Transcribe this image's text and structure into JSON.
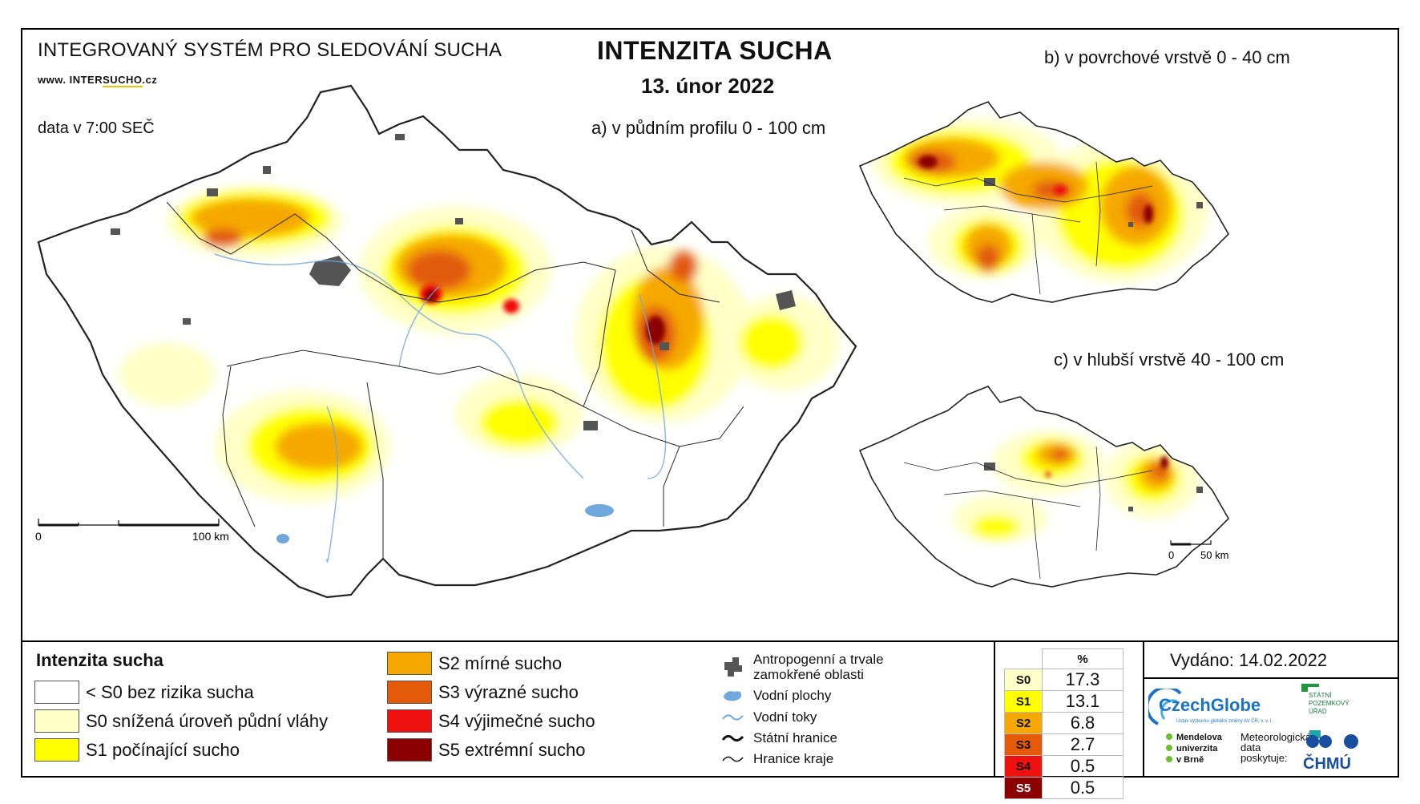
{
  "header": {
    "system_title": "INTEGROVANÝ SYSTÉM PRO SLEDOVÁNÍ SUCHA",
    "website_prefix": "www. INTER",
    "website_highlight": "SUCHO",
    "website_suffix": ".cz",
    "data_time": "data v 7:00 SEČ",
    "main_title": "INTENZITA SUCHA",
    "date": "13. únor 2022"
  },
  "maps": {
    "a_title": "a) v půdním profilu 0 - 100 cm",
    "b_title": "b) v povrchové vrstvě 0 - 40 cm",
    "c_title": "c) v hlubší vrstvě 40 - 100 cm",
    "scale_main": {
      "zero": "0",
      "end": "100 km"
    },
    "scale_small": {
      "zero": "0",
      "end": "50 km"
    }
  },
  "legend": {
    "title": "Intenzita sucha",
    "classes": [
      {
        "label": "< S0 bez rizika sucha",
        "color": "#ffffff"
      },
      {
        "label": "S0 snížená úroveň půdní vláhy",
        "color": "#ffffc8"
      },
      {
        "label": "S1 počínající sucho",
        "color": "#ffff00"
      },
      {
        "label": "S2 mírné sucho",
        "color": "#f5a800"
      },
      {
        "label": "S3 výrazné sucho",
        "color": "#e25a0a"
      },
      {
        "label": "S4 výjimečné sucho",
        "color": "#ef1010"
      },
      {
        "label": "S5 extrémní sucho",
        "color": "#8b0000"
      }
    ],
    "symbols": [
      {
        "label_line1": "Antropogenní a trvale",
        "label_line2": "zamokřené oblasti",
        "icon": "urban-area-icon"
      },
      {
        "label": "Vodní plochy",
        "icon": "water-body-icon"
      },
      {
        "label": "Vodní toky",
        "icon": "river-icon"
      },
      {
        "label": "Státní hranice",
        "icon": "state-border-icon"
      },
      {
        "label": "Hranice kraje",
        "icon": "region-border-icon"
      }
    ]
  },
  "percent_table": {
    "header": "%",
    "rows": [
      {
        "code": "S0",
        "value": "17.3",
        "color": "#ffffc8"
      },
      {
        "code": "S1",
        "value": "13.1",
        "color": "#ffff00"
      },
      {
        "code": "S2",
        "value": "6.8",
        "color": "#f5a800"
      },
      {
        "code": "S3",
        "value": "2.7",
        "color": "#e25a0a"
      },
      {
        "code": "S4",
        "value": "0.5",
        "color": "#ef1010"
      },
      {
        "code": "S5",
        "value": "0.5",
        "color": "#8b0000"
      }
    ]
  },
  "footer": {
    "issued": "Vydáno: 14.02.2022",
    "logo_czechglobe": "CzechGlobe",
    "logo_czechglobe_sub": "Ústav výzkumu globální změny AV ČR, v. v. i.",
    "logo_spu_line1": "STÁTNÍ",
    "logo_spu_line2": "POZEMKOVÝ",
    "logo_spu_line3": "ÚŘAD",
    "logo_mendelu_line1": "Mendelova",
    "logo_mendelu_line2": "univerzita",
    "logo_mendelu_line3": "v Brně",
    "met_line1": "Meteorologická",
    "met_line2": "data",
    "met_line3": "poskytuje:",
    "logo_chmu": "ČHMÚ"
  }
}
